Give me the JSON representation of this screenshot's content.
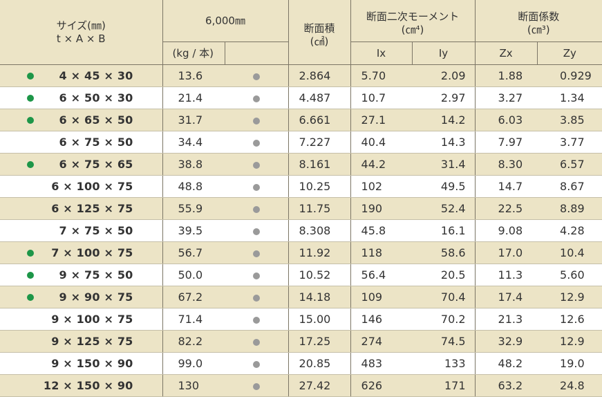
{
  "header": {
    "size_line1": "サイズ(㎜)",
    "size_line2": "t × A × B",
    "length": "6,000㎜",
    "unit_weight": "(kg / 本)",
    "area_line1": "断面積",
    "area_line2": "(㎠)",
    "moment_line1": "断面二次モーメント",
    "moment_line2": "(㎝⁴)",
    "modulus_line1": "断面係数",
    "modulus_line2": "(㎝³)",
    "ix": "Ix",
    "iy": "Iy",
    "zx": "Zx",
    "zy": "Zy"
  },
  "colors": {
    "stock_dot": "#1d9648",
    "availability_dot": "#9a9a9a",
    "band": "#ece4c6"
  },
  "rows": [
    {
      "stock": true,
      "size": "4 ×  45 × 30",
      "weight": "13.6",
      "area": "2.864",
      "ix": "5.70",
      "iy": "2.09",
      "zx": "1.88",
      "zy": "0.929"
    },
    {
      "stock": true,
      "size": "6 ×  50 × 30",
      "weight": "21.4",
      "area": "4.487",
      "ix": "10.7",
      "iy": "2.97",
      "zx": "3.27",
      "zy": "1.34"
    },
    {
      "stock": true,
      "size": "6 ×  65 × 50",
      "weight": "31.7",
      "area": "6.661",
      "ix": "27.1",
      "iy": "14.2",
      "zx": "6.03",
      "zy": "3.85"
    },
    {
      "stock": false,
      "size": "6 ×  75 × 50",
      "weight": "34.4",
      "area": "7.227",
      "ix": "40.4",
      "iy": "14.3",
      "zx": "7.97",
      "zy": "3.77"
    },
    {
      "stock": true,
      "size": "6 ×  75 × 65",
      "weight": "38.8",
      "area": "8.161",
      "ix": "44.2",
      "iy": "31.4",
      "zx": "8.30",
      "zy": "6.57"
    },
    {
      "stock": false,
      "size": "6 × 100 × 75",
      "weight": "48.8",
      "area": "10.25",
      "ix": "102",
      "iy": "49.5",
      "zx": "14.7",
      "zy": "8.67"
    },
    {
      "stock": false,
      "size": "6 × 125 × 75",
      "weight": "55.9",
      "area": "11.75",
      "ix": "190",
      "iy": "52.4",
      "zx": "22.5",
      "zy": "8.89"
    },
    {
      "stock": false,
      "size": "7 ×  75 × 50",
      "weight": "39.5",
      "area": "8.308",
      "ix": "45.8",
      "iy": "16.1",
      "zx": "9.08",
      "zy": "4.28"
    },
    {
      "stock": true,
      "size": "7 × 100 × 75",
      "weight": "56.7",
      "area": "11.92",
      "ix": "118",
      "iy": "58.6",
      "zx": "17.0",
      "zy": "10.4"
    },
    {
      "stock": true,
      "size": "9 ×  75 × 50",
      "weight": "50.0",
      "area": "10.52",
      "ix": "56.4",
      "iy": "20.5",
      "zx": "11.3",
      "zy": "5.60"
    },
    {
      "stock": true,
      "size": "9 ×  90 × 75",
      "weight": "67.2",
      "area": "14.18",
      "ix": "109",
      "iy": "70.4",
      "zx": "17.4",
      "zy": "12.9"
    },
    {
      "stock": false,
      "size": "9 × 100 × 75",
      "weight": "71.4",
      "area": "15.00",
      "ix": "146",
      "iy": "70.2",
      "zx": "21.3",
      "zy": "12.6"
    },
    {
      "stock": false,
      "size": "9 × 125 × 75",
      "weight": "82.2",
      "area": "17.25",
      "ix": "274",
      "iy": "74.5",
      "zx": "32.9",
      "zy": "12.9"
    },
    {
      "stock": false,
      "size": "9 × 150 × 90",
      "weight": "99.0",
      "area": "20.85",
      "ix": "483",
      "iy": "133",
      "zx": "48.2",
      "zy": "19.0"
    },
    {
      "stock": false,
      "size": "12 × 150 × 90",
      "weight": "130",
      "area": "27.42",
      "ix": "626",
      "iy": "171",
      "zx": "63.2",
      "zy": "24.8"
    }
  ]
}
